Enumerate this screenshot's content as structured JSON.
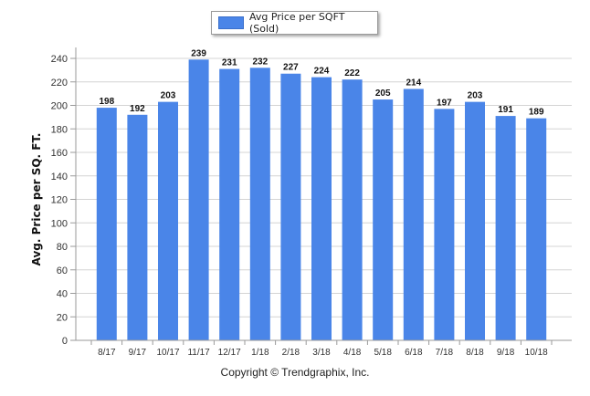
{
  "chart_data": {
    "type": "bar",
    "categories": [
      "8/17",
      "9/17",
      "10/17",
      "11/17",
      "12/17",
      "1/18",
      "2/18",
      "3/18",
      "4/18",
      "5/18",
      "6/18",
      "7/18",
      "8/18",
      "9/18",
      "10/18"
    ],
    "series": [
      {
        "name": "Avg Price per SQFT (Sold)",
        "values": [
          198,
          192,
          203,
          239,
          231,
          232,
          227,
          224,
          222,
          205,
          214,
          197,
          203,
          191,
          189
        ]
      }
    ],
    "ylabel": "Avg. Price per SQ. FT.",
    "xlabel": "",
    "ylim": [
      0,
      240
    ],
    "yticks": [
      0,
      20,
      40,
      60,
      80,
      100,
      120,
      140,
      160,
      180,
      200,
      220,
      240
    ],
    "grid": true,
    "legend_position": "top-center",
    "bar_color": "#4a85e8",
    "data_labels": true
  },
  "legend": {
    "label": "Avg Price per SQFT (Sold)"
  },
  "footer": {
    "copyright": "Copyright © Trendgraphix, Inc."
  }
}
